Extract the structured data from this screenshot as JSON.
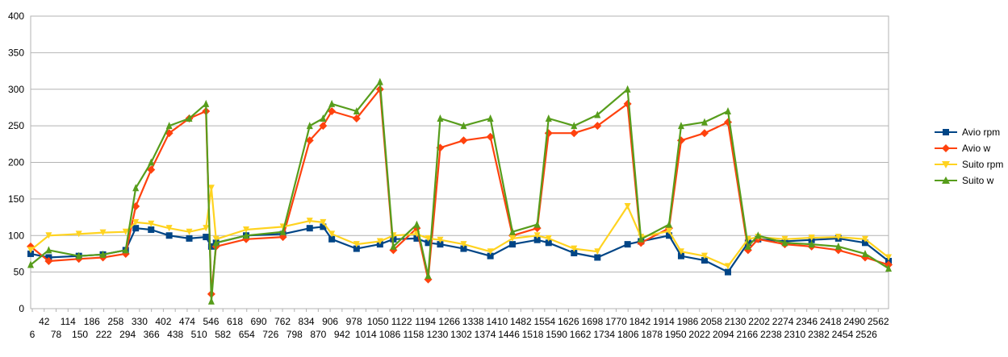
{
  "chart_data": {
    "type": "line",
    "title": "",
    "xlabel": "",
    "ylabel": "",
    "ylim": [
      0,
      400
    ],
    "y_ticks": [
      0,
      50,
      100,
      150,
      200,
      250,
      300,
      350,
      400
    ],
    "x_tick_labels_row1": [
      "42",
      "114",
      "186",
      "258",
      "330",
      "402",
      "474",
      "546",
      "618",
      "690",
      "762",
      "834",
      "906",
      "978",
      "1050",
      "1122",
      "1194",
      "1266",
      "1338",
      "1410",
      "1482",
      "1554",
      "1626",
      "1698",
      "1770",
      "1842",
      "1914",
      "1986",
      "2058",
      "2130",
      "2202",
      "2274",
      "2346",
      "2418",
      "2490",
      "2562"
    ],
    "x_tick_labels_row2": [
      "6",
      "78",
      "150",
      "222",
      "294",
      "366",
      "438",
      "510",
      "582",
      "654",
      "726",
      "798",
      "870",
      "942",
      "1014",
      "1086",
      "1158",
      "1230",
      "1302",
      "1374",
      "1446",
      "1518",
      "1590",
      "1662",
      "1734",
      "1806",
      "1878",
      "1950",
      "2022",
      "2094",
      "2166",
      "2238",
      "2310",
      "2382",
      "2454",
      "2526"
    ],
    "grid": "horizontal",
    "legend_position": "right",
    "x": [
      6,
      60,
      150,
      222,
      290,
      320,
      366,
      420,
      480,
      530,
      546,
      560,
      650,
      760,
      840,
      880,
      906,
      980,
      1050,
      1090,
      1160,
      1194,
      1230,
      1300,
      1380,
      1446,
      1520,
      1554,
      1630,
      1700,
      1790,
      1830,
      1914,
      1950,
      2020,
      2090,
      2150,
      2180,
      2260,
      2340,
      2420,
      2500,
      2570
    ],
    "series": [
      {
        "name": "Avio rpm",
        "color": "#004586",
        "marker": "square",
        "values": [
          75,
          70,
          72,
          74,
          80,
          110,
          108,
          100,
          96,
          98,
          85,
          90,
          100,
          102,
          110,
          112,
          95,
          82,
          88,
          95,
          96,
          90,
          88,
          82,
          72,
          88,
          94,
          90,
          76,
          70,
          88,
          92,
          100,
          72,
          66,
          50,
          90,
          95,
          92,
          94,
          96,
          90,
          65
        ]
      },
      {
        "name": "Avio w",
        "color": "#ff420e",
        "marker": "diamond",
        "values": [
          85,
          65,
          68,
          70,
          75,
          140,
          190,
          240,
          260,
          270,
          20,
          85,
          95,
          98,
          230,
          250,
          270,
          260,
          300,
          80,
          110,
          40,
          220,
          230,
          235,
          100,
          110,
          240,
          240,
          250,
          280,
          90,
          110,
          230,
          240,
          255,
          80,
          95,
          88,
          85,
          80,
          70,
          60
        ]
      },
      {
        "name": "Suito rpm",
        "color": "#ffd320",
        "marker": "triangle-down",
        "values": [
          80,
          100,
          102,
          104,
          105,
          118,
          116,
          110,
          105,
          110,
          165,
          95,
          108,
          112,
          120,
          118,
          102,
          88,
          92,
          100,
          102,
          96,
          94,
          88,
          78,
          96,
          100,
          96,
          82,
          78,
          140,
          98,
          106,
          78,
          72,
          58,
          95,
          98,
          95,
          97,
          98,
          95,
          70
        ]
      },
      {
        "name": "Suito w",
        "color": "#579d1c",
        "marker": "triangle",
        "values": [
          60,
          80,
          72,
          74,
          80,
          165,
          200,
          250,
          260,
          280,
          10,
          90,
          100,
          105,
          250,
          260,
          280,
          270,
          310,
          85,
          115,
          45,
          260,
          250,
          260,
          105,
          115,
          260,
          250,
          265,
          300,
          95,
          115,
          250,
          255,
          270,
          85,
          100,
          90,
          88,
          85,
          75,
          55
        ]
      }
    ]
  }
}
